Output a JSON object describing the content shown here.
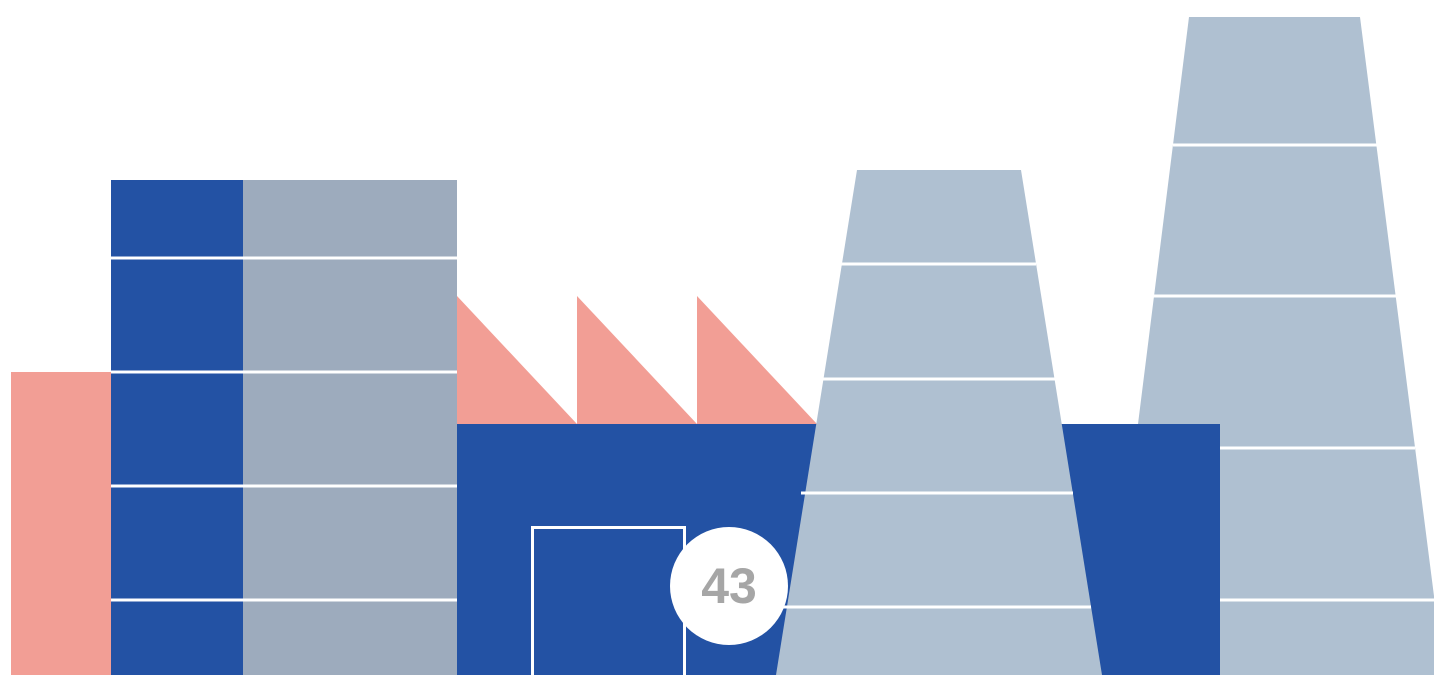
{
  "illustration": {
    "badge": {
      "value": "43"
    }
  },
  "colors": {
    "background": "#ffffff",
    "navy_blue": "#2352a4",
    "slate_gray": "#9dabbd",
    "light_steel": "#afc0d1",
    "salmon": "#f29e95",
    "divider": "#ffffff",
    "badge_text": "#a6a6a6"
  }
}
